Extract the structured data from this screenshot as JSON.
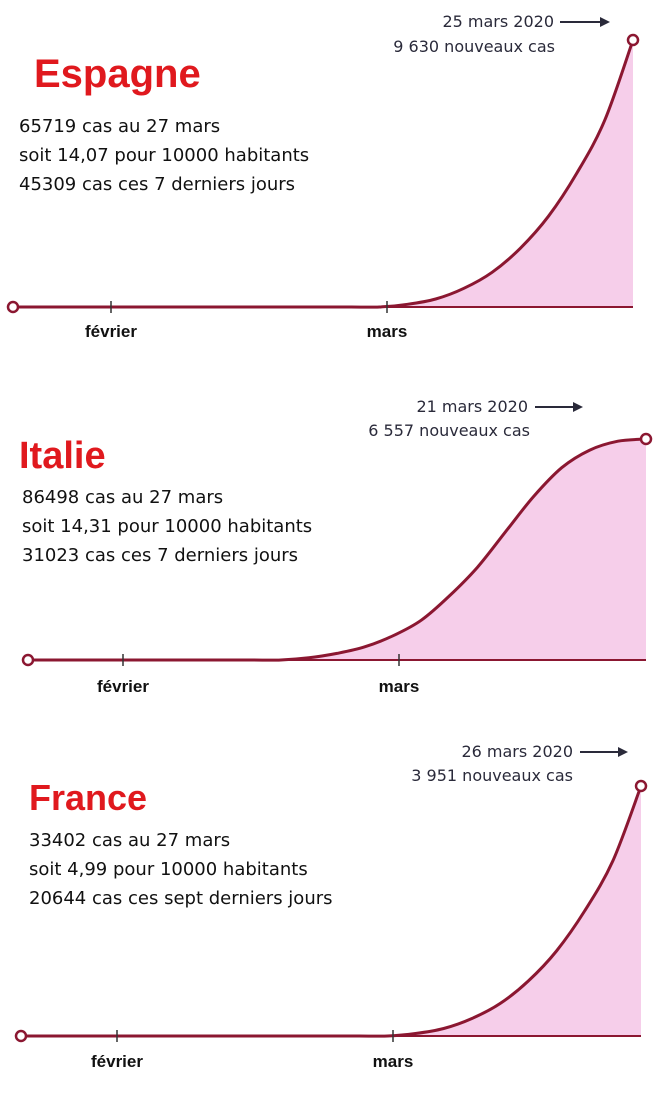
{
  "colors": {
    "title": "#e0191e",
    "curve": "#8b1731",
    "fill": "#f5c6e6",
    "text": "#111111",
    "annotation": "#2a2a3a"
  },
  "chart_data": [
    {
      "type": "area",
      "title": "Espagne",
      "stats": [
        "65719 cas au 27 mars",
        "soit 14,07 pour 10000 habitants",
        "45309 cas ces 7 derniers jours"
      ],
      "x_ticks": [
        "février",
        "mars"
      ],
      "annotation": {
        "date": "25 mars 2020",
        "value": "9 630 nouveaux cas"
      },
      "peak_value": 9630,
      "curve_shape": [
        0,
        0,
        0,
        0,
        0,
        0,
        0,
        0,
        0,
        0,
        0,
        0,
        0,
        0,
        0.01,
        0.03,
        0.07,
        0.13,
        0.22,
        0.34,
        0.5,
        0.7,
        1
      ]
    },
    {
      "type": "area",
      "title": "Italie",
      "stats": [
        "86498 cas au 27 mars",
        "soit 14,31 pour 10000 habitants",
        "31023 cas ces 7 derniers jours"
      ],
      "x_ticks": [
        "février",
        "mars"
      ],
      "annotation": {
        "date": "21 mars 2020",
        "value": "6 557 nouveaux cas"
      },
      "peak_value": 6557,
      "curve_shape": [
        0,
        0,
        0,
        0,
        0,
        0,
        0,
        0,
        0,
        0,
        0.01,
        0.03,
        0.06,
        0.11,
        0.18,
        0.29,
        0.42,
        0.58,
        0.74,
        0.87,
        0.95,
        0.99,
        1
      ]
    },
    {
      "type": "area",
      "title": "France",
      "stats": [
        "33402 cas au 27 mars",
        "soit 4,99 pour 10000 habitants",
        "20644 cas ces sept derniers jours"
      ],
      "x_ticks": [
        "février",
        "mars"
      ],
      "annotation": {
        "date": "26 mars 2020",
        "value": "3 951 nouveaux cas"
      },
      "peak_value": 3951,
      "curve_shape": [
        0,
        0,
        0,
        0,
        0,
        0,
        0,
        0,
        0,
        0,
        0,
        0,
        0,
        0,
        0.01,
        0.03,
        0.07,
        0.13,
        0.22,
        0.34,
        0.5,
        0.7,
        1
      ]
    }
  ]
}
